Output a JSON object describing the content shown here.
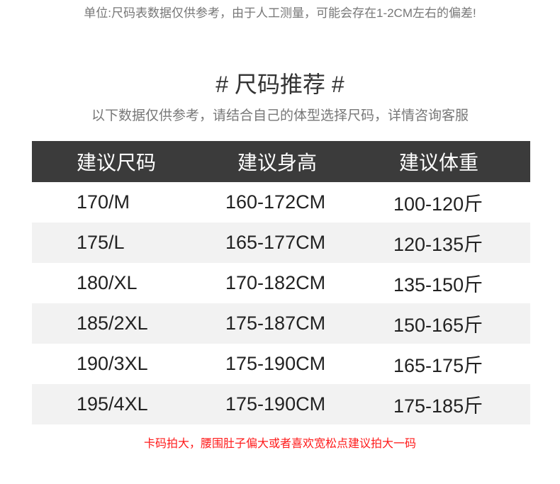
{
  "note": "单位:尺码表数据仅供参考，由于人工测量，可能会存在1-2CM左右的偏差!",
  "title": "# 尺码推荐 #",
  "subtitle": "以下数据仅供参考，请结合自己的体型选择尺码，详情咨询客服",
  "table": {
    "headers": [
      "建议尺码",
      "建议身高",
      "建议体重"
    ],
    "rows": [
      [
        "170/M",
        "160-172CM",
        "100-120斤"
      ],
      [
        "175/L",
        "165-177CM",
        "120-135斤"
      ],
      [
        "180/XL",
        "170-182CM",
        "135-150斤"
      ],
      [
        "185/2XL",
        "175-187CM",
        "150-165斤"
      ],
      [
        "190/3XL",
        "175-190CM",
        "165-175斤"
      ],
      [
        "195/4XL",
        "175-190CM",
        "175-185斤"
      ]
    ]
  },
  "warning": "卡码拍大，腰围肚子偏大或者喜欢宽松点建议拍大一码",
  "colors": {
    "header_bg": "#3b3b3b",
    "alt_row": "#f2f2f2",
    "warning": "#ff1a1a"
  }
}
